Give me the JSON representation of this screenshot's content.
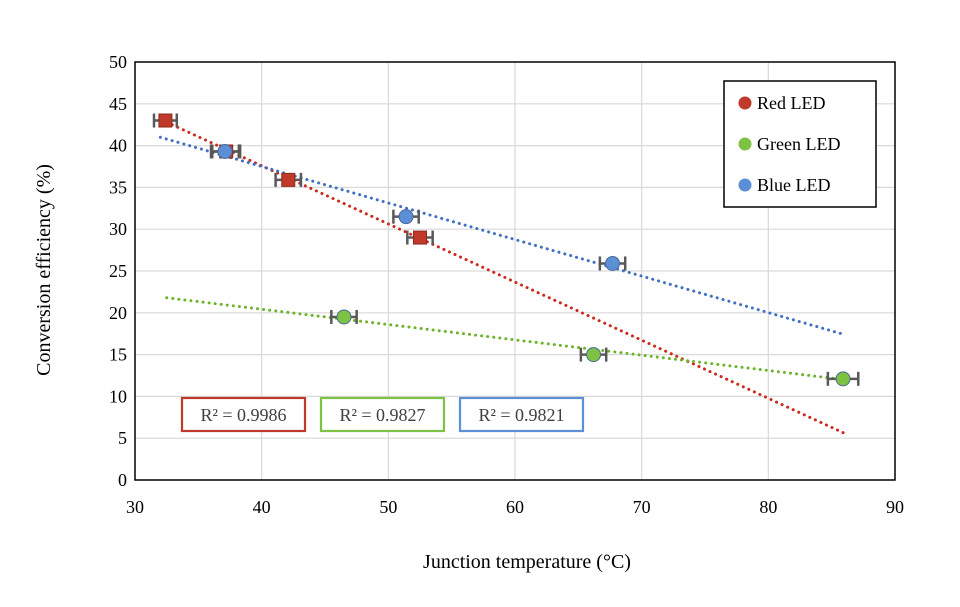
{
  "chart_data": {
    "type": "scatter",
    "title": "",
    "xlabel": "Junction temperature (°C)",
    "ylabel": "Conversion efficiency (%)",
    "xlim": [
      30,
      90
    ],
    "ylim": [
      0,
      50
    ],
    "xticks": [
      30,
      40,
      50,
      60,
      70,
      80,
      90
    ],
    "yticks": [
      0,
      5,
      10,
      15,
      20,
      25,
      30,
      35,
      40,
      45,
      50
    ],
    "grid": true,
    "legend_position": "top-right",
    "series": [
      {
        "name": "Red LED",
        "color": "#c0392b",
        "marker": "square",
        "points": [
          {
            "x": 32.4,
            "y": 43.0,
            "xerr": 0.9
          },
          {
            "x": 37.2,
            "y": 39.3,
            "xerr": 1.1
          },
          {
            "x": 42.1,
            "y": 35.9,
            "xerr": 1.0
          },
          {
            "x": 52.5,
            "y": 29.0,
            "xerr": 1.0
          }
        ],
        "trendline": {
          "x": [
            32.5,
            86
          ],
          "y": [
            42.8,
            5.6
          ]
        },
        "r2": "R² = 0.9986"
      },
      {
        "name": "Green LED",
        "color": "#7dc242",
        "marker": "circle",
        "points": [
          {
            "x": 46.5,
            "y": 19.5,
            "xerr": 1.0
          },
          {
            "x": 66.2,
            "y": 15.0,
            "xerr": 1.0
          },
          {
            "x": 85.9,
            "y": 12.1,
            "xerr": 1.2
          }
        ],
        "trendline": {
          "x": [
            32.5,
            86
          ],
          "y": [
            21.8,
            12.0
          ]
        },
        "r2": "R² = 0.9827"
      },
      {
        "name": "Blue LED",
        "color": "#5b8fd6",
        "marker": "circle",
        "points": [
          {
            "x": 37.1,
            "y": 39.3,
            "xerr": 1.1
          },
          {
            "x": 51.4,
            "y": 31.5,
            "xerr": 1.0
          },
          {
            "x": 67.7,
            "y": 25.9,
            "xerr": 1.0
          }
        ],
        "trendline": {
          "x": [
            32.0,
            86
          ],
          "y": [
            41.0,
            17.4
          ]
        },
        "r2": "R² = 0.9821"
      }
    ]
  },
  "colors": {
    "red_trend": "#cc2a1e",
    "green_trend": "#6cb32a",
    "blue_trend": "#3f6fc4",
    "error_bar": "#595959",
    "grid": "#d9d9d9",
    "r2_red_border": "#c0392b",
    "r2_green_border": "#7dc242",
    "r2_blue_border": "#5b8fd6"
  }
}
